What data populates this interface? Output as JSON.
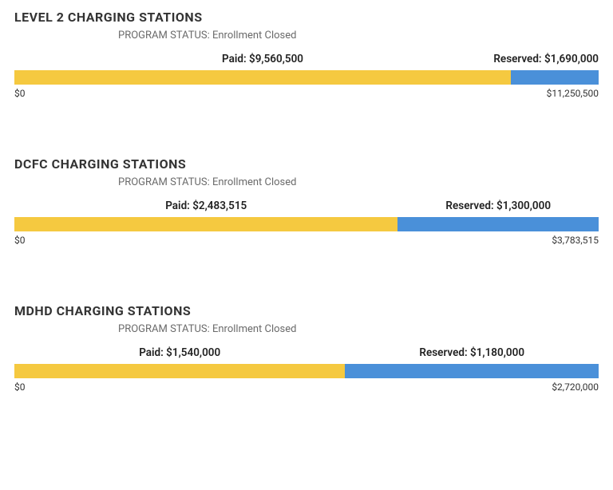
{
  "colors": {
    "paid": "#f5c940",
    "reserved": "#4a90d9",
    "text_dark": "#333333",
    "text_gray": "#6a6a6a"
  },
  "sections": [
    {
      "title": "LEVEL 2 CHARGING STATIONS",
      "status": "PROGRAM STATUS: Enrollment Closed",
      "paid_label": "Paid: $9,560,500",
      "reserved_label": "Reserved: $1,690,000",
      "paid_value": 9560500,
      "reserved_value": 1690000,
      "total": 11250500,
      "axis_min": "$0",
      "axis_max": "$11,250,500"
    },
    {
      "title": "DCFC CHARGING STATIONS",
      "status": "PROGRAM STATUS: Enrollment Closed",
      "paid_label": "Paid: $2,483,515",
      "reserved_label": "Reserved: $1,300,000",
      "paid_value": 2483515,
      "reserved_value": 1300000,
      "total": 3783515,
      "axis_min": "$0",
      "axis_max": "$3,783,515"
    },
    {
      "title": "MDHD CHARGING STATIONS",
      "status": "PROGRAM STATUS: Enrollment Closed",
      "paid_label": "Paid: $1,540,000",
      "reserved_label": "Reserved: $1,180,000",
      "paid_value": 1540000,
      "reserved_value": 1180000,
      "total": 2720000,
      "axis_min": "$0",
      "axis_max": "$2,720,000"
    }
  ]
}
